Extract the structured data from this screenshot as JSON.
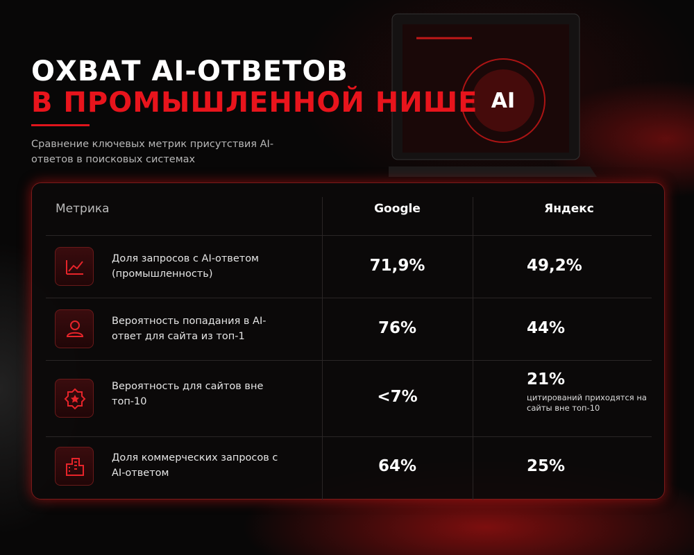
{
  "header": {
    "title_line1": "ОХВАТ AI-ОТВЕТОВ",
    "title_line2": "В ПРОМЫШЛЕННОЙ НИШЕ",
    "subtitle": "Сравнение ключевых метрик присутствия AI-ответов в поисковых системах"
  },
  "table": {
    "headers": [
      "Метрика",
      "Google",
      "Яндекс"
    ],
    "rows": [
      {
        "metric": "Доля запросов с AI-ответом (промышленность)",
        "google": "71,9%",
        "yandex": "49,2%"
      },
      {
        "metric": "Вероятность попадания в AI-ответ для сайта из топ-1",
        "google": "76%",
        "yandex": "44%"
      },
      {
        "metric": "Вероятность для сайтов вне топ-10",
        "google": "<7%",
        "yandex": "21%",
        "yandex_note": "цитирований приходятся на сайты вне топ-10"
      },
      {
        "metric": "Доля коммерческих запросов с AI-ответом",
        "google": "64%",
        "yandex": "25%"
      }
    ]
  },
  "screen": {
    "label": "AI"
  }
}
